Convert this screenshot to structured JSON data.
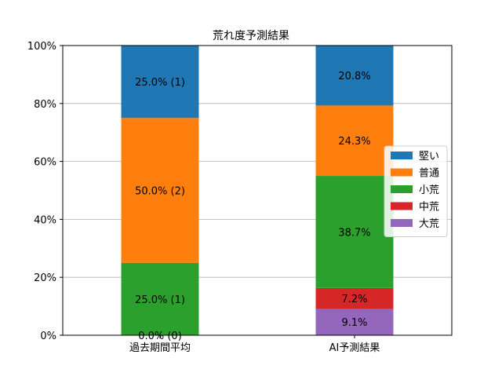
{
  "chart_data": {
    "type": "bar",
    "stacked": true,
    "title": "荒れ度予測結果",
    "categories": [
      "過去期間平均",
      "AI予測結果"
    ],
    "ylim": [
      0,
      100
    ],
    "yticks": [
      0,
      20,
      40,
      60,
      80,
      100
    ],
    "ytick_labels": [
      "0%",
      "20%",
      "40%",
      "60%",
      "80%",
      "100%"
    ],
    "grid": "horizontal",
    "legend_position": "right",
    "series": [
      {
        "name": "大荒",
        "color": "#9467bd",
        "values": [
          0.0,
          9.1
        ],
        "labels": [
          "0.0% (0)",
          "9.1%"
        ]
      },
      {
        "name": "中荒",
        "color": "#d62728",
        "values": [
          0.0,
          7.2
        ],
        "labels": [
          "",
          "7.2%"
        ]
      },
      {
        "name": "小荒",
        "color": "#2ca02c",
        "values": [
          25.0,
          38.7
        ],
        "labels": [
          "25.0% (1)",
          "38.7%"
        ]
      },
      {
        "name": "普通",
        "color": "#ff7f0e",
        "values": [
          50.0,
          24.3
        ],
        "labels": [
          "50.0% (2)",
          "24.3%"
        ]
      },
      {
        "name": "堅い",
        "color": "#1f77b4",
        "values": [
          25.0,
          20.8
        ],
        "labels": [
          "25.0% (1)",
          "20.8%"
        ]
      }
    ],
    "legend_order": [
      "堅い",
      "普通",
      "小荒",
      "中荒",
      "大荒"
    ]
  }
}
